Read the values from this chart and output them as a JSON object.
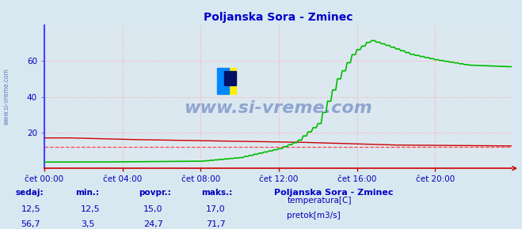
{
  "title": "Poljanska Sora - Zminec",
  "bg_color": "#d8e8f0",
  "plot_bg_color": "#dce8f0",
  "title_color": "#0000cc",
  "grid_color": "#ffaaaa",
  "left_spine_color": "#4444ff",
  "bottom_spine_color": "#cc0000",
  "text_color": "#0000bb",
  "ylim": [
    0,
    80
  ],
  "yticks": [
    20,
    40,
    60
  ],
  "xlabel_ticks": [
    "čet 00:00",
    "čet 04:00",
    "čet 08:00",
    "čet 12:00",
    "čet 16:00",
    "čet 20:00"
  ],
  "xtick_positions": [
    0,
    48,
    96,
    144,
    192,
    240
  ],
  "total_points": 288,
  "watermark": "www.si-vreme.com",
  "table_headers": [
    "sedaj:",
    "min.:",
    "povpr.:",
    "maks.:"
  ],
  "table_row1": [
    "12,5",
    "12,5",
    "15,0",
    "17,0"
  ],
  "table_row2": [
    "56,7",
    "3,5",
    "24,7",
    "71,7"
  ],
  "series_label": "Poljanska Sora - Zminec",
  "legend_items": [
    "temperatura[C]",
    "pretok[m3/s]"
  ],
  "legend_colors": [
    "#cc0000",
    "#00bb00"
  ],
  "temp_color": "#cc0000",
  "flow_color": "#00bb00",
  "temp_avg_value": 12.0,
  "temp_avg_color": "#ff4444"
}
